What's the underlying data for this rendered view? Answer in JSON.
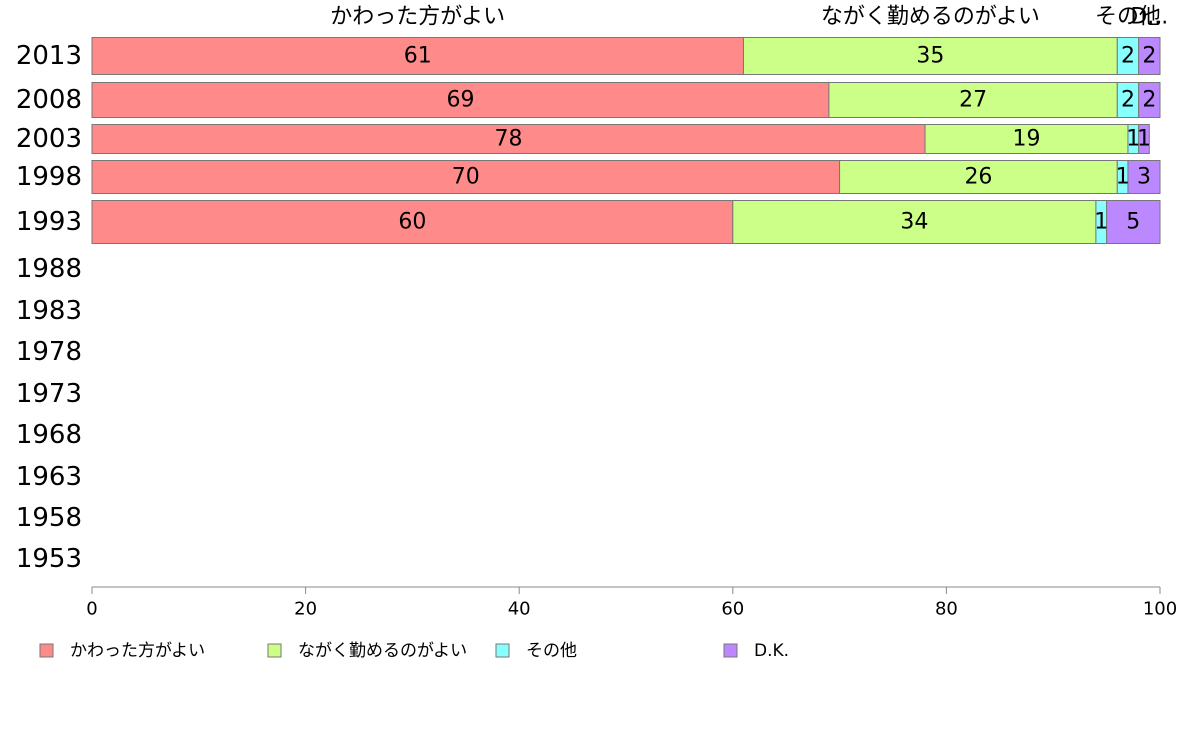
{
  "chart_data": {
    "type": "bar",
    "orientation": "horizontal",
    "stacked": true,
    "categories": [
      "2013",
      "2008",
      "2003",
      "1998",
      "1993",
      "1988",
      "1983",
      "1978",
      "1973",
      "1968",
      "1963",
      "1958",
      "1953"
    ],
    "series": [
      {
        "name": "かわった方がよい",
        "color": "#ff8a8a",
        "values": [
          61,
          69,
          78,
          70,
          60,
          null,
          null,
          null,
          null,
          null,
          null,
          null,
          null
        ]
      },
      {
        "name": "ながく勤めるのがよい",
        "color": "#ccff88",
        "values": [
          35,
          27,
          19,
          26,
          34,
          null,
          null,
          null,
          null,
          null,
          null,
          null,
          null
        ]
      },
      {
        "name": "その他",
        "color": "#88ffff",
        "values": [
          2,
          2,
          1,
          1,
          1,
          null,
          null,
          null,
          null,
          null,
          null,
          null,
          null
        ]
      },
      {
        "name": "D.K.",
        "color": "#bb88ff",
        "values": [
          2,
          2,
          1,
          3,
          5,
          null,
          null,
          null,
          null,
          null,
          null,
          null,
          null
        ]
      }
    ],
    "top_labels": [
      "かわった方がよい",
      "ながく勤めるのがよい",
      "その他",
      "D..."
    ],
    "xlim": [
      0,
      100
    ],
    "xticks": [
      "0",
      "20",
      "40",
      "60",
      "80",
      "100"
    ],
    "legend": [
      "かわった方がよい",
      "ながく勤めるのがよい",
      "その他",
      "D.K."
    ],
    "legend_position": "bottom",
    "grid": false
  }
}
